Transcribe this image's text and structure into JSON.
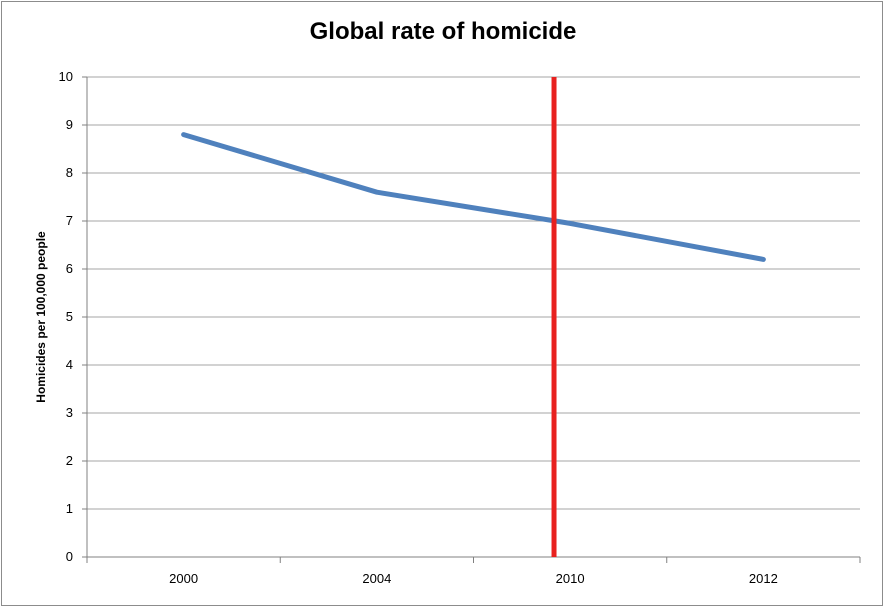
{
  "chart_data": {
    "type": "line",
    "title": "Global rate of homicide",
    "xlabel": "",
    "ylabel": "Homicides per 100,000 people",
    "categories": [
      "2000",
      "2004",
      "2010",
      "2012"
    ],
    "series": [
      {
        "values": [
          8.8,
          7.6,
          6.95,
          6.2
        ]
      }
    ],
    "ylim": [
      0,
      10
    ],
    "yticks": [
      0,
      1,
      2,
      3,
      4,
      5,
      6,
      7,
      8,
      9,
      10
    ],
    "grid": true,
    "legend": "none",
    "annotations": [
      {
        "type": "vertical-line",
        "x": 2009.5
      }
    ],
    "colors": {
      "series": "#4f81bd",
      "marker_line": "#e8211f",
      "grid": "#a6a6a6",
      "axis": "#808080"
    }
  }
}
